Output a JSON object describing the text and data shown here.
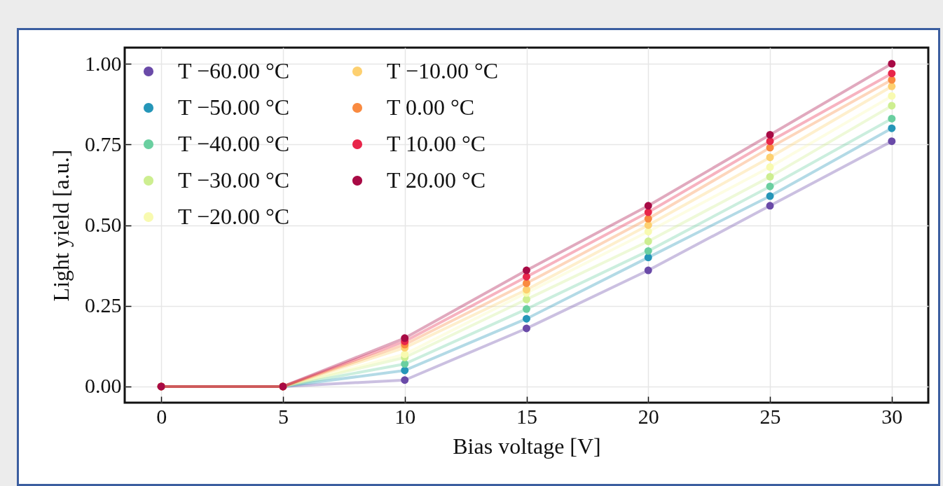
{
  "chart_data": {
    "type": "line",
    "xlabel": "Bias voltage [V]",
    "ylabel": "Light yield [a.u.]",
    "x": [
      0,
      5,
      10,
      15,
      20,
      25,
      30
    ],
    "xlim": [
      -1.5,
      31.5
    ],
    "xticks": [
      0,
      5,
      10,
      15,
      20,
      25,
      30
    ],
    "ylim": [
      -0.05,
      1.05
    ],
    "yticks": [
      {
        "value": 0,
        "label": "0.00"
      },
      {
        "value": 0.25,
        "label": "0.25"
      },
      {
        "value": 0.5,
        "label": "0.50"
      },
      {
        "value": 0.75,
        "label": "0.75"
      },
      {
        "value": 1,
        "label": "1.00"
      }
    ],
    "grid": true,
    "legend": "top left",
    "marker": "circle",
    "line_style": "solid",
    "series": [
      {
        "name": "T −60.00 °C",
        "color": "#6a4aa8",
        "values": [
          0,
          0,
          0.02,
          0.18,
          0.36,
          0.56,
          0.76
        ]
      },
      {
        "name": "T −50.00 °C",
        "color": "#2596b8",
        "values": [
          0,
          0,
          0.05,
          0.21,
          0.4,
          0.59,
          0.8
        ]
      },
      {
        "name": "T −40.00 °C",
        "color": "#6acfa0",
        "values": [
          0,
          0,
          0.07,
          0.24,
          0.42,
          0.62,
          0.83
        ]
      },
      {
        "name": "T −30.00 °C",
        "color": "#cdee90",
        "values": [
          0,
          0,
          0.09,
          0.27,
          0.45,
          0.65,
          0.87
        ]
      },
      {
        "name": "T −20.00 °C",
        "color": "#f8fab0",
        "values": [
          0,
          0,
          0.1,
          0.29,
          0.48,
          0.68,
          0.9
        ]
      },
      {
        "name": "T −10.00 °C",
        "color": "#fdd070",
        "values": [
          0,
          0,
          0.12,
          0.3,
          0.5,
          0.71,
          0.93
        ]
      },
      {
        "name": "T 0.00 °C",
        "color": "#f98a40",
        "values": [
          0,
          0,
          0.13,
          0.32,
          0.52,
          0.74,
          0.95
        ]
      },
      {
        "name": "T 10.00 °C",
        "color": "#e8254a",
        "values": [
          0,
          0,
          0.14,
          0.34,
          0.54,
          0.76,
          0.97
        ]
      },
      {
        "name": "T 20.00 °C",
        "color": "#a80a45",
        "values": [
          0,
          0,
          0.15,
          0.36,
          0.56,
          0.78,
          1.0
        ]
      }
    ]
  }
}
